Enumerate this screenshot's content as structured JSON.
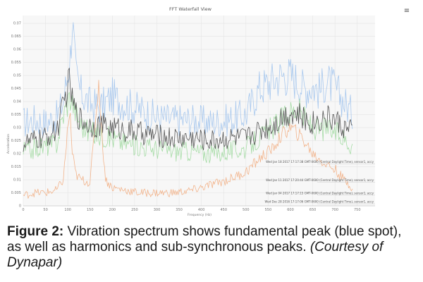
{
  "menu_icon": "hamburger-menu-icon",
  "chart_data": {
    "type": "line",
    "title": "FFT Waterfall View",
    "xlabel": "Frequency (Hz)",
    "ylabel": "Acceleration",
    "xlim": [
      0,
      790
    ],
    "ylim": [
      0,
      0.073
    ],
    "x_ticks": [
      0,
      50,
      100,
      150,
      200,
      250,
      300,
      350,
      400,
      450,
      500,
      550,
      600,
      650,
      700,
      750
    ],
    "y_ticks": [
      "0",
      "0.005",
      "0.01",
      "0.015",
      "0.02",
      "0.025",
      "0.03",
      "0.035",
      "0.04",
      "0.045",
      "0.05",
      "0.055",
      "0.06",
      "0.065",
      "0.07"
    ],
    "grid": true,
    "series": [
      {
        "name": "Wed Jan 18 2017 17:17:38 GMT-0600 (Central Daylight Time), sensor1, accy",
        "color": "#a8c8ee",
        "x": [
          0,
          25,
          50,
          75,
          90,
          100,
          105,
          110,
          118,
          130,
          150,
          175,
          200,
          230,
          260,
          300,
          340,
          380,
          420,
          460,
          500,
          530,
          560,
          580,
          600,
          615,
          630,
          650,
          665,
          680,
          700,
          720,
          740
        ],
        "y": [
          0.032,
          0.033,
          0.032,
          0.034,
          0.04,
          0.051,
          0.056,
          0.072,
          0.05,
          0.043,
          0.039,
          0.038,
          0.042,
          0.039,
          0.037,
          0.034,
          0.033,
          0.033,
          0.032,
          0.033,
          0.035,
          0.045,
          0.048,
          0.05,
          0.05,
          0.048,
          0.045,
          0.046,
          0.044,
          0.048,
          0.045,
          0.04,
          0.035
        ]
      },
      {
        "name": "Wed Jan 11 2017 17:20:44 GMT-0600 (Central Daylight Time), sensor1, accy",
        "color": "#555555",
        "x": [
          0,
          25,
          50,
          75,
          90,
          100,
          105,
          110,
          118,
          130,
          150,
          175,
          200,
          230,
          260,
          300,
          340,
          380,
          420,
          460,
          500,
          530,
          560,
          580,
          600,
          615,
          630,
          650,
          665,
          680,
          700,
          720,
          740
        ],
        "y": [
          0.024,
          0.025,
          0.026,
          0.029,
          0.038,
          0.046,
          0.048,
          0.04,
          0.036,
          0.033,
          0.031,
          0.031,
          0.03,
          0.029,
          0.028,
          0.027,
          0.026,
          0.026,
          0.025,
          0.026,
          0.026,
          0.029,
          0.031,
          0.034,
          0.036,
          0.035,
          0.033,
          0.032,
          0.033,
          0.034,
          0.033,
          0.03,
          0.028
        ]
      },
      {
        "name": "Wed Jan 04 2017 17:17:15 GMT-0600 (Central Daylight Time), sensor1, accy",
        "color": "#a6dca6",
        "x": [
          0,
          25,
          50,
          75,
          90,
          100,
          105,
          110,
          118,
          130,
          150,
          175,
          200,
          230,
          260,
          300,
          340,
          380,
          420,
          460,
          500,
          530,
          560,
          580,
          600,
          615,
          630,
          650,
          665,
          680,
          700,
          720,
          740
        ],
        "y": [
          0.021,
          0.022,
          0.023,
          0.024,
          0.035,
          0.04,
          0.042,
          0.04,
          0.036,
          0.031,
          0.028,
          0.027,
          0.026,
          0.024,
          0.023,
          0.022,
          0.021,
          0.021,
          0.02,
          0.021,
          0.022,
          0.026,
          0.03,
          0.033,
          0.036,
          0.037,
          0.034,
          0.03,
          0.029,
          0.03,
          0.028,
          0.026,
          0.023
        ]
      },
      {
        "name": "Wed Dec 28 2016 17:17:06 GMT-0600 (Central Daylight Time), sensor1, accy",
        "color": "#f2b48c",
        "x": [
          0,
          25,
          50,
          75,
          90,
          100,
          105,
          110,
          118,
          130,
          150,
          170,
          175,
          185,
          200,
          230,
          260,
          300,
          340,
          380,
          420,
          460,
          500,
          530,
          560,
          580,
          600,
          615,
          630,
          650,
          665,
          680,
          700,
          720,
          740
        ],
        "y": [
          0.004,
          0.005,
          0.005,
          0.006,
          0.01,
          0.03,
          0.036,
          0.02,
          0.012,
          0.01,
          0.009,
          0.048,
          0.03,
          0.01,
          0.007,
          0.006,
          0.005,
          0.005,
          0.005,
          0.006,
          0.008,
          0.01,
          0.013,
          0.018,
          0.022,
          0.027,
          0.03,
          0.028,
          0.025,
          0.02,
          0.018,
          0.016,
          0.014,
          0.01,
          0.007
        ]
      }
    ]
  },
  "caption": {
    "label": "Figure 2:",
    "text": " Vibration spectrum shows fundamental peak (blue spot), as well as harmonics and sub-synchronous peaks. ",
    "credit": "(Courtesy of Dynapar)"
  }
}
